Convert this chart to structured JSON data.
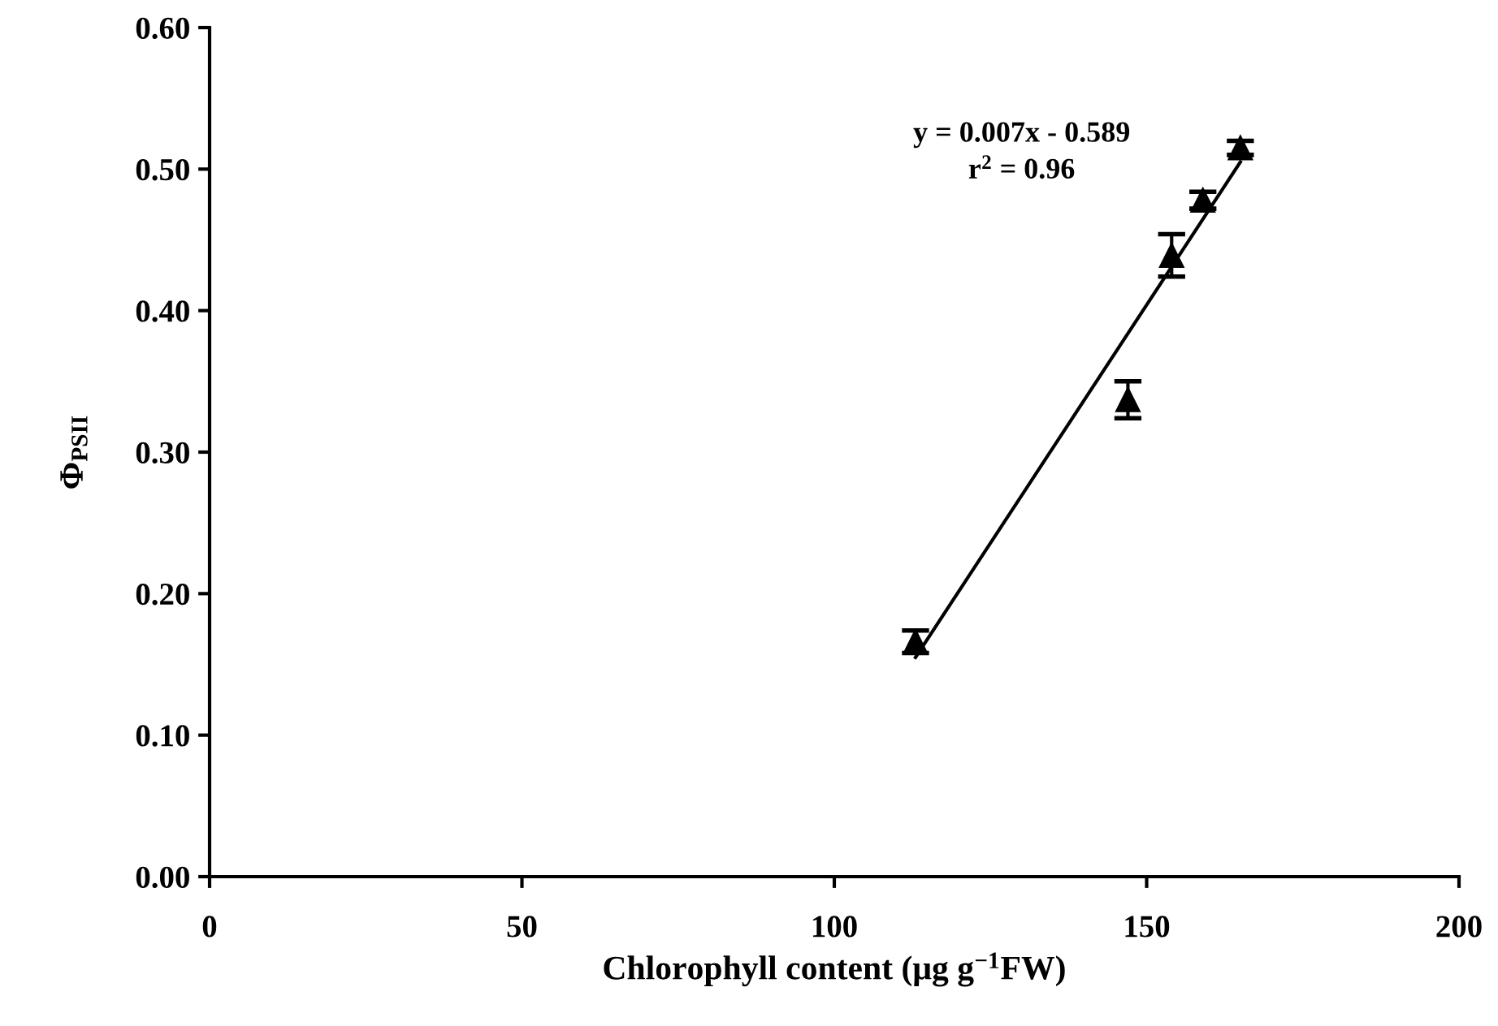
{
  "chart_data": {
    "type": "scatter",
    "xlabel": "Chlorophyll content (μg g$^{−1}$FW)",
    "ylabel": "Φ$_{PSII}$",
    "series": [
      {
        "color": "#000000",
        "marker": "triangle",
        "x": [
          113,
          147,
          154,
          159,
          165
        ],
        "values": [
          0.166,
          0.337,
          0.439,
          0.478,
          0.515
        ],
        "errors": [
          0.008,
          0.013,
          0.015,
          0.006,
          0.005
        ]
      },
      {
        "type": "line",
        "color": "#000000",
        "marker": "none",
        "line_style": "solid",
        "x": [
          113,
          165
        ],
        "values": [
          0.155,
          0.505
        ]
      }
    ],
    "annotations": [
      "y = 0.007x - 0.589\nr$^{2}$ = 0.96"
    ],
    "xlim": [
      0,
      200
    ],
    "xticks": [
      0,
      50,
      100,
      150,
      200
    ],
    "ylim": [
      0,
      0.6
    ],
    "yticks": [
      {
        "value": 0,
        "label": "0.00"
      },
      {
        "value": 0.1,
        "label": "0.10"
      },
      {
        "value": 0.2,
        "label": "0.20"
      },
      {
        "value": 0.3,
        "label": "0.30"
      },
      {
        "value": 0.4,
        "label": "0.40"
      },
      {
        "value": 0.5,
        "label": "0.50"
      },
      {
        "value": 0.6,
        "label": "0.60"
      }
    ],
    "grid": false,
    "legend": false
  }
}
